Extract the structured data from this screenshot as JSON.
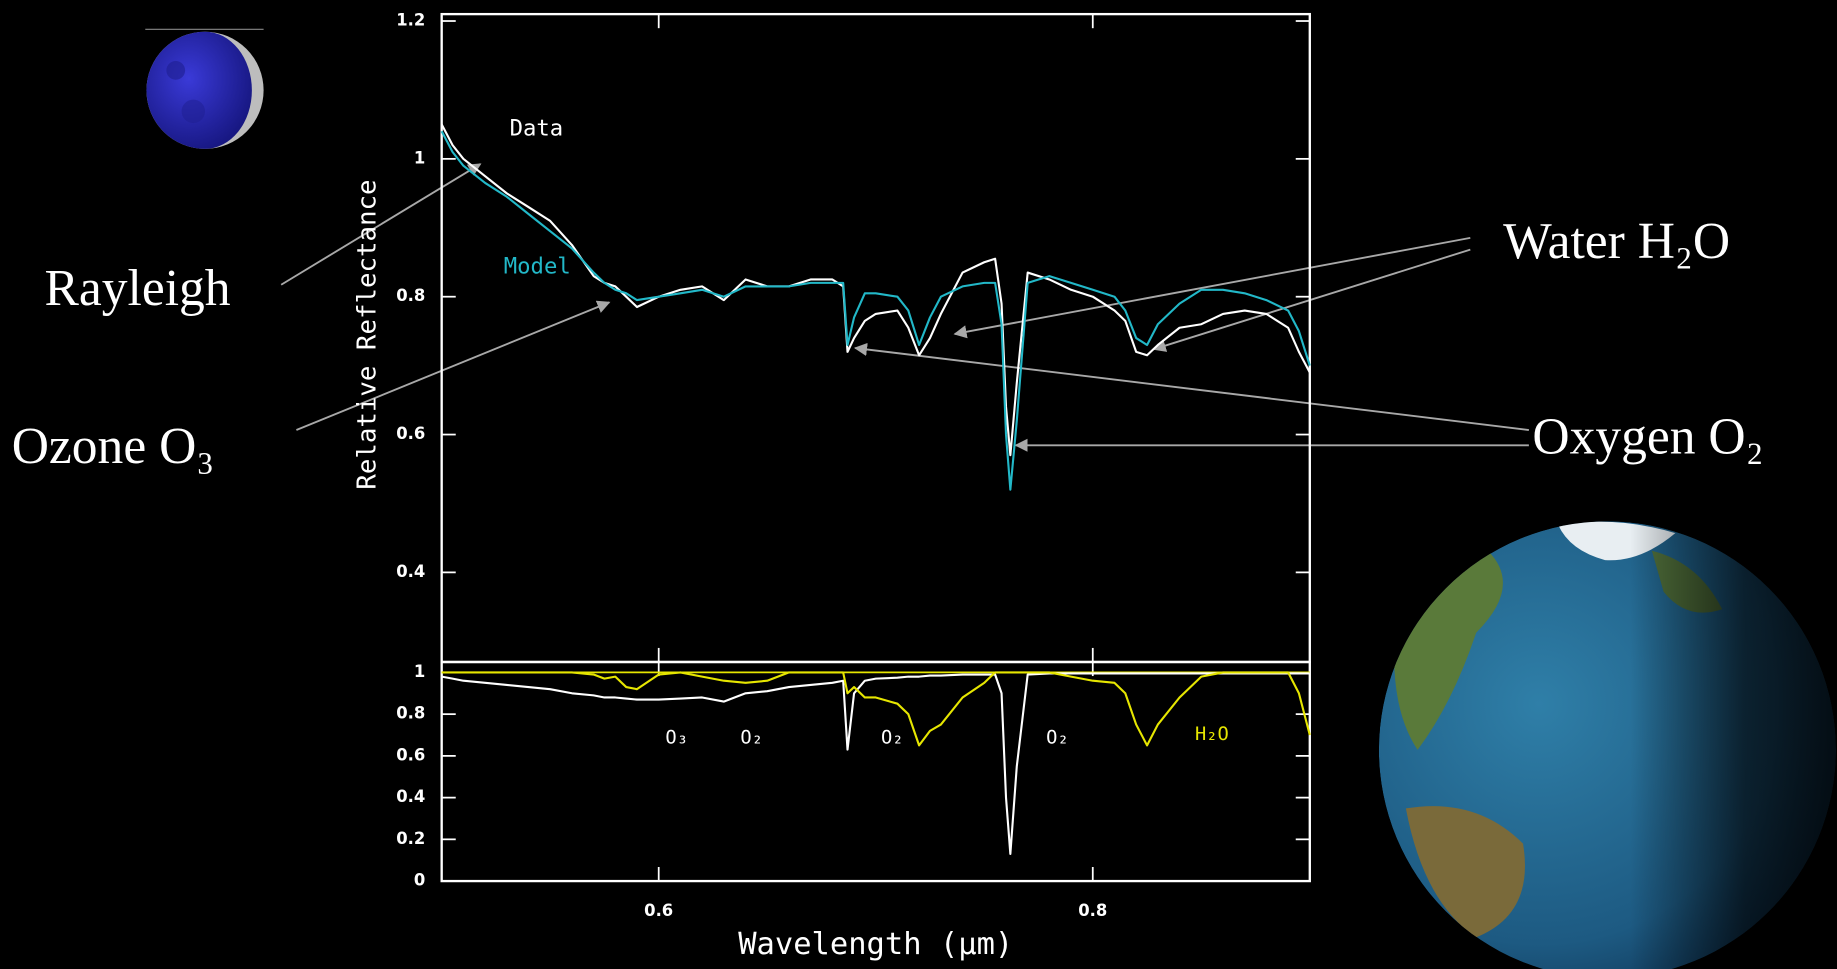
{
  "chart_data": [
    {
      "type": "line",
      "ylabel": "Relative Reflectance",
      "xlim": [
        0.5,
        0.9
      ],
      "ylim": [
        0.27,
        1.21
      ],
      "yticks": [
        0.4,
        0.6,
        0.8,
        1,
        1.2
      ],
      "x": [
        0.5,
        0.505,
        0.51,
        0.52,
        0.53,
        0.54,
        0.55,
        0.56,
        0.57,
        0.575,
        0.58,
        0.585,
        0.59,
        0.6,
        0.61,
        0.62,
        0.63,
        0.64,
        0.65,
        0.66,
        0.67,
        0.68,
        0.685,
        0.687,
        0.69,
        0.695,
        0.7,
        0.71,
        0.715,
        0.72,
        0.725,
        0.73,
        0.74,
        0.75,
        0.755,
        0.758,
        0.76,
        0.762,
        0.765,
        0.77,
        0.78,
        0.79,
        0.8,
        0.81,
        0.815,
        0.82,
        0.825,
        0.83,
        0.84,
        0.85,
        0.86,
        0.87,
        0.88,
        0.89,
        0.895,
        0.9
      ],
      "series": [
        {
          "name": "Data",
          "color": "#ffffff",
          "values": [
            1.05,
            1.02,
            1.0,
            0.975,
            0.95,
            0.93,
            0.91,
            0.875,
            0.83,
            0.82,
            0.815,
            0.8,
            0.785,
            0.8,
            0.81,
            0.815,
            0.795,
            0.825,
            0.815,
            0.815,
            0.825,
            0.825,
            0.815,
            0.72,
            0.74,
            0.765,
            0.775,
            0.78,
            0.755,
            0.715,
            0.74,
            0.775,
            0.835,
            0.85,
            0.855,
            0.79,
            0.64,
            0.57,
            0.675,
            0.835,
            0.825,
            0.81,
            0.8,
            0.78,
            0.765,
            0.72,
            0.715,
            0.73,
            0.755,
            0.76,
            0.775,
            0.78,
            0.775,
            0.755,
            0.72,
            0.69
          ]
        },
        {
          "name": "Model",
          "color": "#22b8c8",
          "values": [
            1.04,
            1.01,
            0.99,
            0.965,
            0.945,
            0.92,
            0.895,
            0.87,
            0.835,
            0.82,
            0.81,
            0.805,
            0.795,
            0.8,
            0.805,
            0.81,
            0.8,
            0.815,
            0.815,
            0.815,
            0.82,
            0.82,
            0.82,
            0.73,
            0.77,
            0.805,
            0.805,
            0.8,
            0.78,
            0.73,
            0.77,
            0.8,
            0.815,
            0.82,
            0.82,
            0.76,
            0.6,
            0.52,
            0.62,
            0.82,
            0.83,
            0.82,
            0.81,
            0.8,
            0.78,
            0.74,
            0.73,
            0.76,
            0.79,
            0.81,
            0.81,
            0.805,
            0.795,
            0.78,
            0.75,
            0.7
          ]
        }
      ]
    },
    {
      "type": "line",
      "xlabel": "Wavelength (μm)",
      "xlim": [
        0.5,
        0.9
      ],
      "ylim": [
        0,
        1.05
      ],
      "xticks": [
        0.6,
        0.8
      ],
      "yticks": [
        0,
        0.2,
        0.4,
        0.6,
        0.8,
        1
      ],
      "hline": {
        "value": 1,
        "color": "#e6e600"
      },
      "x": [
        0.5,
        0.505,
        0.51,
        0.52,
        0.53,
        0.54,
        0.55,
        0.56,
        0.57,
        0.575,
        0.58,
        0.585,
        0.59,
        0.6,
        0.61,
        0.62,
        0.63,
        0.64,
        0.65,
        0.66,
        0.67,
        0.68,
        0.685,
        0.687,
        0.69,
        0.695,
        0.7,
        0.71,
        0.715,
        0.72,
        0.725,
        0.73,
        0.74,
        0.75,
        0.755,
        0.758,
        0.76,
        0.762,
        0.765,
        0.77,
        0.78,
        0.79,
        0.8,
        0.81,
        0.815,
        0.82,
        0.825,
        0.83,
        0.84,
        0.85,
        0.86,
        0.87,
        0.88,
        0.89,
        0.895,
        0.9
      ],
      "series": [
        {
          "color": "#ffffff",
          "values": [
            0.98,
            0.97,
            0.96,
            0.95,
            0.94,
            0.93,
            0.92,
            0.9,
            0.89,
            0.88,
            0.88,
            0.875,
            0.87,
            0.87,
            0.875,
            0.88,
            0.86,
            0.9,
            0.91,
            0.93,
            0.94,
            0.95,
            0.96,
            0.63,
            0.9,
            0.96,
            0.97,
            0.975,
            0.98,
            0.98,
            0.985,
            0.985,
            0.99,
            0.99,
            0.99,
            0.9,
            0.4,
            0.13,
            0.55,
            0.99,
            0.995,
            0.995,
            0.995,
            0.995,
            0.995,
            0.995,
            0.995,
            0.995,
            0.995,
            0.995,
            0.995,
            0.995,
            0.995,
            0.995,
            0.995,
            0.995
          ]
        },
        {
          "name": "H₂O",
          "color": "#e6e600",
          "values": [
            1,
            1,
            1,
            1,
            1,
            1,
            1,
            1,
            0.99,
            0.97,
            0.98,
            0.93,
            0.92,
            0.99,
            1,
            0.98,
            0.96,
            0.95,
            0.96,
            1,
            1,
            1,
            1,
            0.9,
            0.93,
            0.88,
            0.88,
            0.85,
            0.8,
            0.65,
            0.72,
            0.75,
            0.88,
            0.95,
            1,
            1,
            1,
            1,
            1,
            1,
            1,
            0.98,
            0.96,
            0.95,
            0.9,
            0.75,
            0.65,
            0.75,
            0.88,
            0.98,
            1,
            1,
            1,
            1,
            0.9,
            0.7
          ]
        }
      ],
      "annotations": [
        "O₃",
        "O₂",
        "O₂",
        "O₂"
      ]
    }
  ],
  "slide": {
    "labels": [
      "Rayleigh",
      "Ozone O₃",
      "Water H₂O",
      "Oxygen O₂"
    ]
  }
}
